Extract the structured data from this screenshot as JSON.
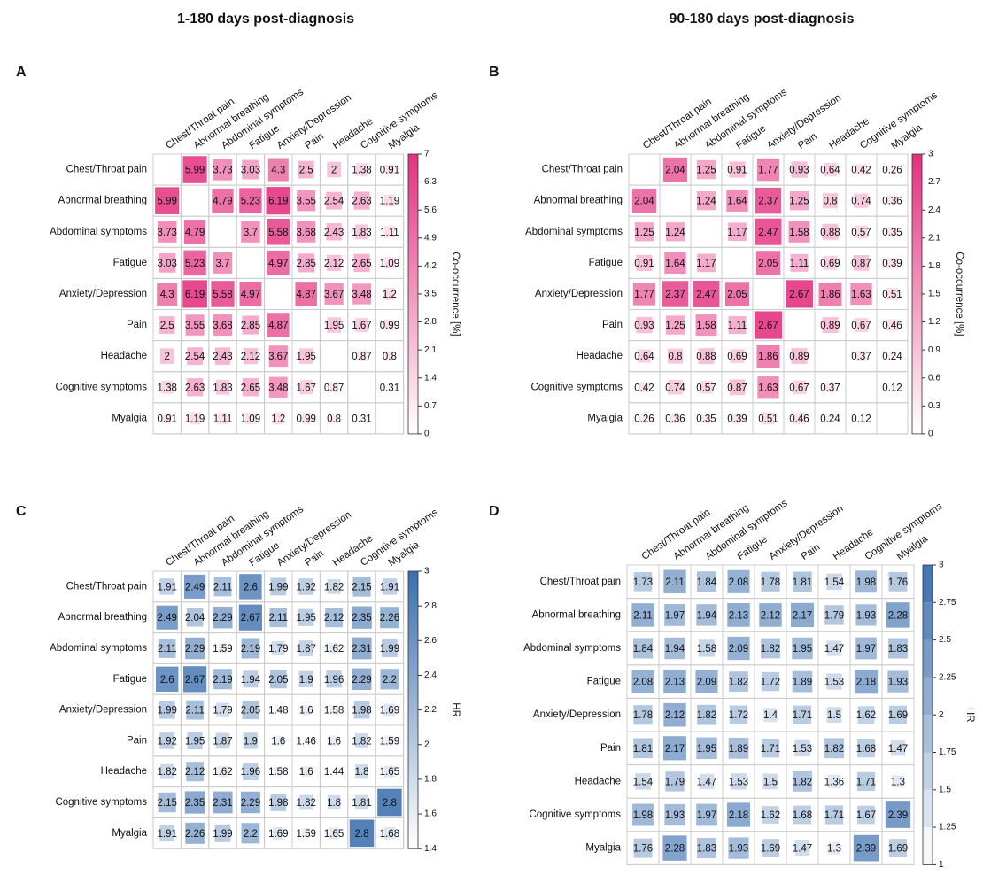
{
  "column_titles": [
    "1-180 days post-diagnosis",
    "90-180 days post-diagnosis"
  ],
  "chart_data": [
    {
      "type": "heatmap",
      "label": "A",
      "color": "#e4307f",
      "categories": [
        "Chest/Throat pain",
        "Abnormal breathing",
        "Abdominal symptoms",
        "Fatigue",
        "Anxiety/Depression",
        "Pain",
        "Headache",
        "Cognitive symptoms",
        "Myalgia"
      ],
      "matrix": [
        [
          null,
          5.99,
          3.73,
          3.03,
          4.3,
          2.5,
          2,
          1.38,
          0.91
        ],
        [
          5.99,
          null,
          4.79,
          5.23,
          6.19,
          3.55,
          2.54,
          2.63,
          1.19
        ],
        [
          3.73,
          4.79,
          null,
          3.7,
          5.58,
          3.68,
          2.43,
          1.83,
          1.11
        ],
        [
          3.03,
          5.23,
          3.7,
          null,
          4.97,
          2.85,
          2.12,
          2.65,
          1.09
        ],
        [
          4.3,
          6.19,
          5.58,
          4.97,
          null,
          4.87,
          3.67,
          3.48,
          1.2
        ],
        [
          2.5,
          3.55,
          3.68,
          2.85,
          4.87,
          null,
          1.95,
          1.67,
          0.99
        ],
        [
          2,
          2.54,
          2.43,
          2.12,
          3.67,
          1.95,
          null,
          0.87,
          0.8
        ],
        [
          1.38,
          2.63,
          1.83,
          2.65,
          3.48,
          1.67,
          0.87,
          null,
          0.31
        ],
        [
          0.91,
          1.19,
          1.11,
          1.09,
          1.2,
          0.99,
          0.8,
          0.31,
          null
        ]
      ],
      "colorbar": {
        "title": "Co-occurrence [%]",
        "lim": [
          0,
          7
        ],
        "ticks": [
          0,
          0.7,
          1.4,
          2.1,
          2.8,
          3.5,
          4.2,
          4.9,
          5.6,
          6.3,
          7
        ]
      }
    },
    {
      "type": "heatmap",
      "label": "B",
      "color": "#e4307f",
      "categories": [
        "Chest/Throat pain",
        "Abnormal breathing",
        "Abdominal symptoms",
        "Fatigue",
        "Anxiety/Depression",
        "Pain",
        "Headache",
        "Cognitive symptoms",
        "Myalgia"
      ],
      "matrix": [
        [
          null,
          2.04,
          1.25,
          0.91,
          1.77,
          0.93,
          0.64,
          0.42,
          0.26
        ],
        [
          2.04,
          null,
          1.24,
          1.64,
          2.37,
          1.25,
          0.8,
          0.74,
          0.36
        ],
        [
          1.25,
          1.24,
          null,
          1.17,
          2.47,
          1.58,
          0.88,
          0.57,
          0.35
        ],
        [
          0.91,
          1.64,
          1.17,
          null,
          2.05,
          1.11,
          0.69,
          0.87,
          0.39
        ],
        [
          1.77,
          2.37,
          2.47,
          2.05,
          null,
          2.67,
          1.86,
          1.63,
          0.51
        ],
        [
          0.93,
          1.25,
          1.58,
          1.11,
          2.67,
          null,
          0.89,
          0.67,
          0.46
        ],
        [
          0.64,
          0.8,
          0.88,
          0.69,
          1.86,
          0.89,
          null,
          0.37,
          0.24
        ],
        [
          0.42,
          0.74,
          0.57,
          0.87,
          1.63,
          0.67,
          0.37,
          null,
          0.12
        ],
        [
          0.26,
          0.36,
          0.35,
          0.39,
          0.51,
          0.46,
          0.24,
          0.12,
          null
        ]
      ],
      "colorbar": {
        "title": "Co-occurrence [%]",
        "lim": [
          0,
          3
        ],
        "ticks": [
          0,
          0.3,
          0.6,
          0.9,
          1.2,
          1.5,
          1.8,
          2.1,
          2.4,
          2.7,
          3
        ]
      }
    },
    {
      "type": "heatmap",
      "label": "C",
      "color": "#3b6fae",
      "categories": [
        "Chest/Throat pain",
        "Abnormal breathing",
        "Abdominal symptoms",
        "Fatigue",
        "Anxiety/Depression",
        "Pain",
        "Headache",
        "Cognitive symptoms",
        "Myalgia"
      ],
      "matrix": [
        [
          1.91,
          2.49,
          2.11,
          2.6,
          1.99,
          1.92,
          1.82,
          2.15,
          1.91
        ],
        [
          2.49,
          2.04,
          2.29,
          2.67,
          2.11,
          1.95,
          2.12,
          2.35,
          2.26
        ],
        [
          2.11,
          2.29,
          1.59,
          2.19,
          1.79,
          1.87,
          1.62,
          2.31,
          1.99
        ],
        [
          2.6,
          2.67,
          2.19,
          1.94,
          2.05,
          1.9,
          1.96,
          2.29,
          2.2
        ],
        [
          1.99,
          2.11,
          1.79,
          2.05,
          1.48,
          1.6,
          1.58,
          1.98,
          1.69
        ],
        [
          1.92,
          1.95,
          1.87,
          1.9,
          1.6,
          1.46,
          1.6,
          1.82,
          1.59
        ],
        [
          1.82,
          2.12,
          1.62,
          1.96,
          1.58,
          1.6,
          1.44,
          1.8,
          1.65
        ],
        [
          2.15,
          2.35,
          2.31,
          2.29,
          1.98,
          1.82,
          1.8,
          1.81,
          2.8
        ],
        [
          1.91,
          2.26,
          1.99,
          2.2,
          1.69,
          1.59,
          1.65,
          2.8,
          1.68
        ]
      ],
      "colorbar": {
        "title": "HR",
        "lim": [
          1.4,
          3
        ],
        "ticks": [
          1.4,
          1.6,
          1.8,
          2,
          2.2,
          2.4,
          2.6,
          2.8,
          3
        ]
      }
    },
    {
      "type": "heatmap",
      "label": "D",
      "color": "#3b6fae",
      "categories": [
        "Chest/Throat pain",
        "Abnormal breathing",
        "Abdominal symptoms",
        "Fatigue",
        "Anxiety/Depression",
        "Pain",
        "Headache",
        "Cognitive symptoms",
        "Myalgia"
      ],
      "matrix": [
        [
          1.73,
          2.11,
          1.84,
          2.08,
          1.78,
          1.81,
          1.54,
          1.98,
          1.76
        ],
        [
          2.11,
          1.97,
          1.94,
          2.13,
          2.12,
          2.17,
          1.79,
          1.93,
          2.28
        ],
        [
          1.84,
          1.94,
          1.58,
          2.09,
          1.82,
          1.95,
          1.47,
          1.97,
          1.83
        ],
        [
          2.08,
          2.13,
          2.09,
          1.82,
          1.72,
          1.89,
          1.53,
          2.18,
          1.93
        ],
        [
          1.78,
          2.12,
          1.82,
          1.72,
          1.4,
          1.71,
          1.5,
          1.62,
          1.69
        ],
        [
          1.81,
          2.17,
          1.95,
          1.89,
          1.71,
          1.53,
          1.82,
          1.68,
          1.47
        ],
        [
          1.54,
          1.79,
          1.47,
          1.53,
          1.5,
          1.82,
          1.36,
          1.71,
          1.3
        ],
        [
          1.98,
          1.93,
          1.97,
          2.18,
          1.62,
          1.68,
          1.71,
          1.67,
          2.39
        ],
        [
          1.76,
          2.28,
          1.83,
          1.93,
          1.69,
          1.47,
          1.3,
          2.39,
          1.69
        ]
      ],
      "colorbar": {
        "title": "HR",
        "lim": [
          1,
          3
        ],
        "ticks": [
          1,
          1.25,
          1.5,
          1.75,
          2,
          2.25,
          2.5,
          2.75,
          3
        ],
        "stepped": true
      }
    }
  ]
}
